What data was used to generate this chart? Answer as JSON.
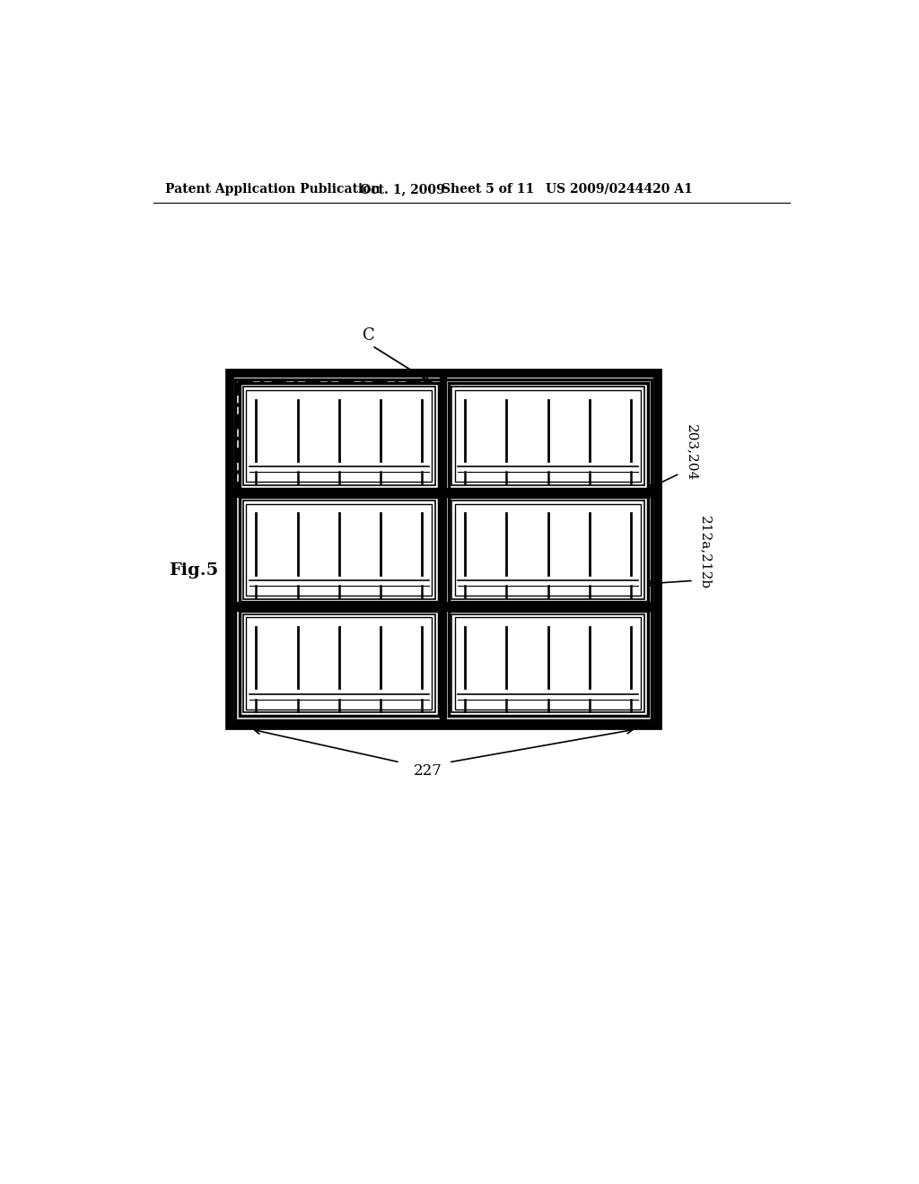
{
  "bg_color": "#ffffff",
  "header_text": "Patent Application Publication",
  "header_date": "Oct. 1, 2009",
  "header_sheet": "Sheet 5 of 11",
  "header_patent": "US 2009/0244420 A1",
  "fig_label": "Fig.5",
  "label_C": "C",
  "label_203_204": "203,204",
  "label_212a": "212a,212b",
  "label_227": "227",
  "num_rows": 3,
  "num_cols": 2
}
